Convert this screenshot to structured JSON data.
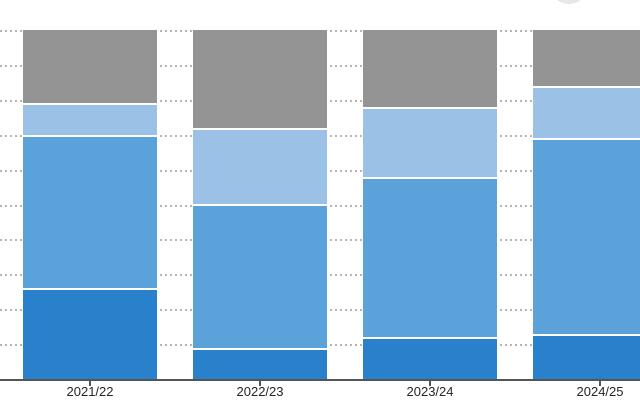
{
  "page": {
    "background": "#ffffff"
  },
  "decor": {
    "partial_circle_color": "#e9e9e9"
  },
  "chart_data": {
    "type": "bar",
    "variant": "stacked-100-percent",
    "title": "",
    "xlabel": "",
    "ylabel": "",
    "categories": [
      "2021/22",
      "2022/23",
      "2023/24",
      "2024/25"
    ],
    "series": [
      {
        "name": "segment-dark-blue",
        "color": "#2A81CB",
        "values": [
          26,
          9,
          12,
          13
        ]
      },
      {
        "name": "segment-medium-blue",
        "color": "#5BA2DB",
        "values": [
          44,
          41,
          46,
          56
        ]
      },
      {
        "name": "segment-light-blue",
        "color": "#9BC2E6",
        "values": [
          9,
          22,
          20,
          15
        ]
      },
      {
        "name": "segment-gray",
        "color": "#949494",
        "values": [
          21,
          28,
          22,
          16
        ]
      }
    ],
    "stack_order_bottom_to_top": [
      "segment-dark-blue",
      "segment-medium-blue",
      "segment-light-blue",
      "segment-gray"
    ],
    "values_unit": "percent",
    "ylim": [
      0,
      100
    ],
    "y_tick_labels_visible": false,
    "gridlines": {
      "visible": true,
      "style": "dotted",
      "color": "#b5b5b5",
      "count": 10,
      "interval_percent": 10
    },
    "legend": {
      "visible": false
    },
    "axis": {
      "baseline_color": "#555555",
      "tick_color": "#555555",
      "label_color": "#262626",
      "segment_separator_color": "#ffffff"
    }
  }
}
